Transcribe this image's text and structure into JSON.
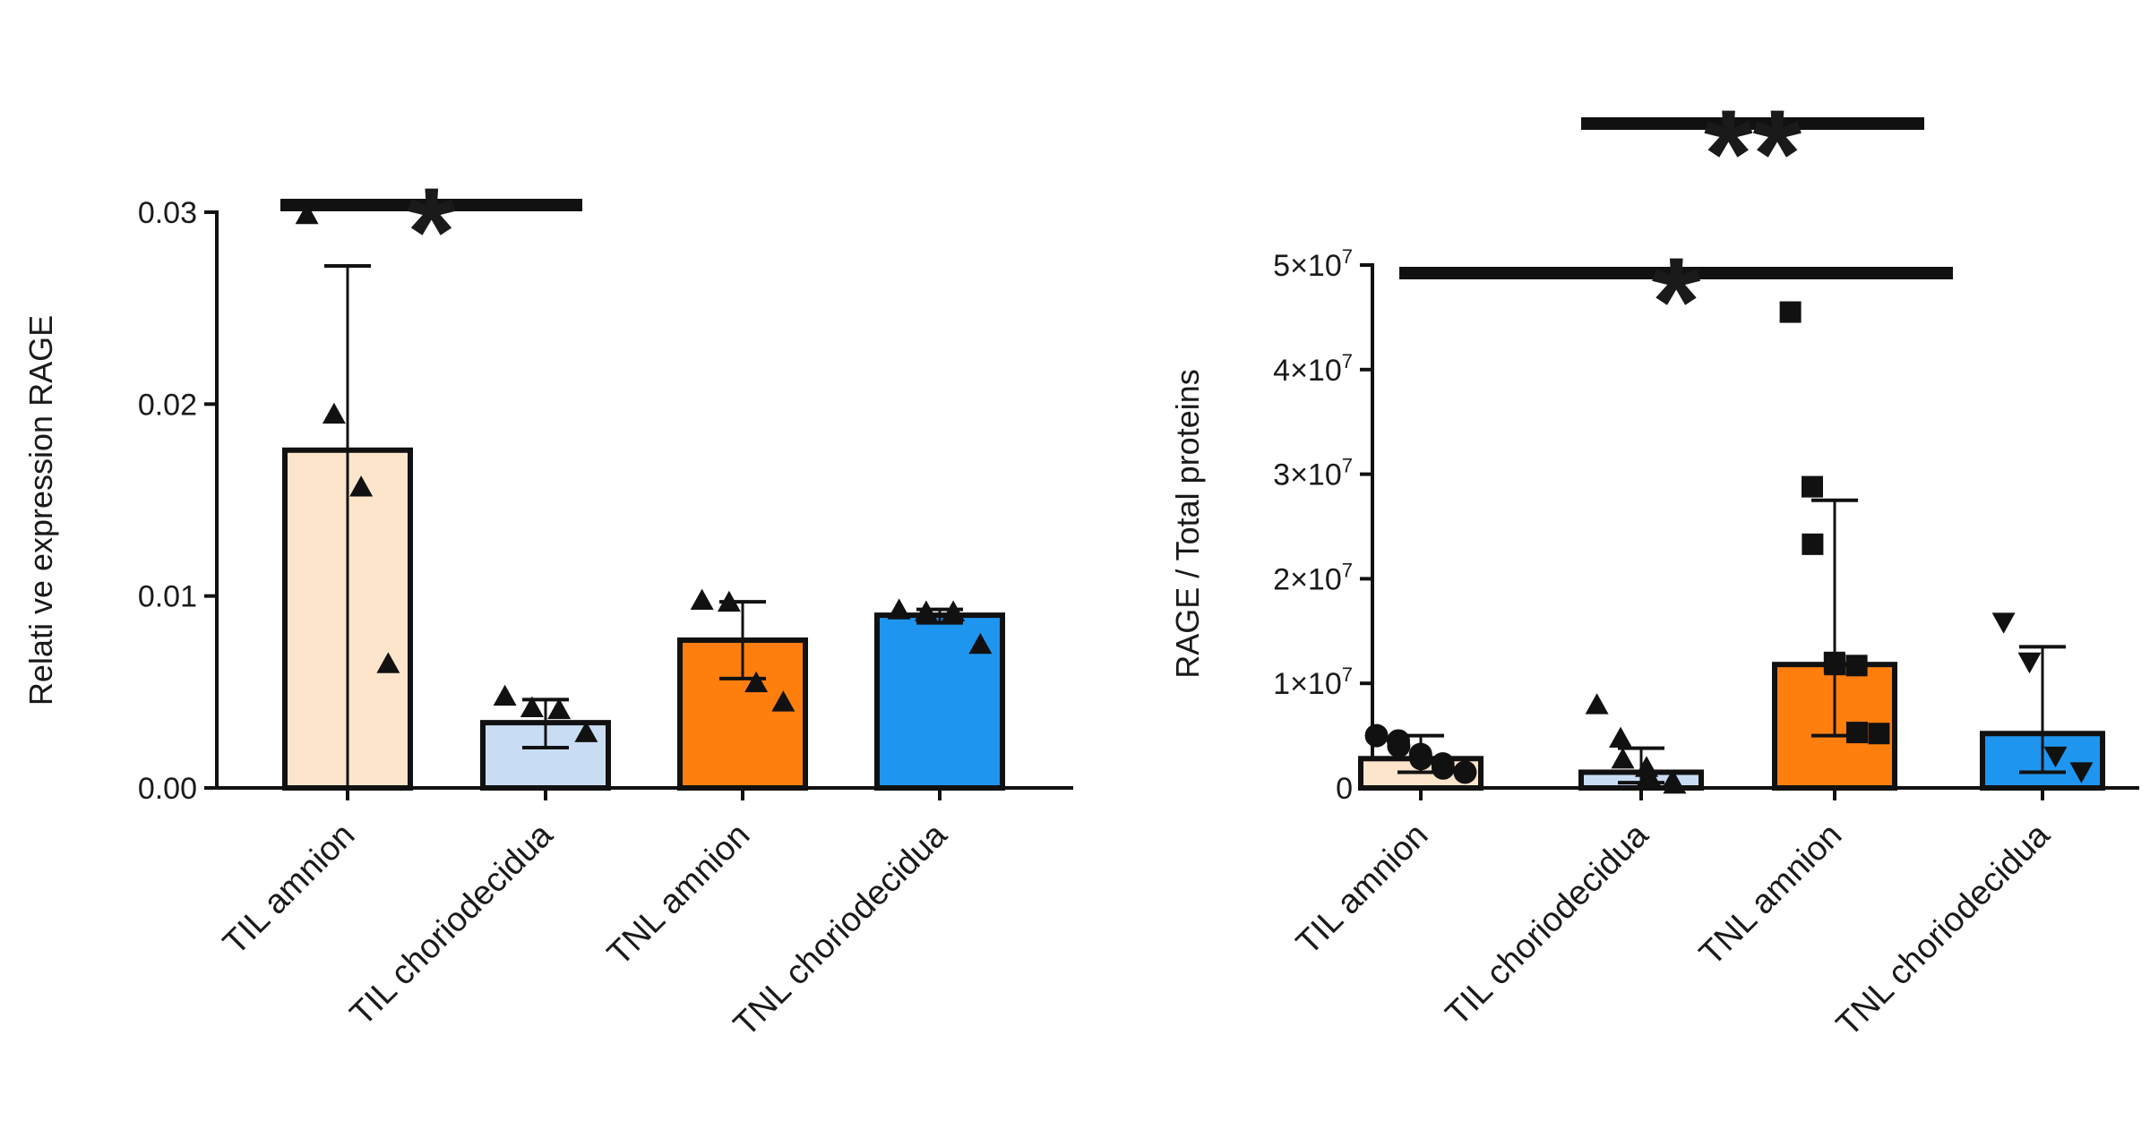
{
  "chart_data": [
    {
      "type": "bar",
      "ylabel": "Relati ve expression RAGE",
      "ylim": [
        0,
        0.03
      ],
      "yticks": [
        "0.00",
        "0.01",
        "0.02",
        "0.03"
      ],
      "ytick_values": [
        0,
        0.01,
        0.02,
        0.03
      ],
      "categories": [
        "TIL amnion",
        "TIL choriodecidua",
        "TNL amnion",
        "TNL choriodecidua"
      ],
      "bar_colors": [
        "#fde5cc",
        "#c8ddf4",
        "#ff7f0e",
        "#1e96f0"
      ],
      "values": [
        0.0176,
        0.0034,
        0.0077,
        0.009
      ],
      "error_upper": [
        0.0272,
        0.0046,
        0.0097,
        0.0093
      ],
      "error_lower": [
        0.0,
        0.0021,
        0.0057,
        0.0086
      ],
      "marker": "triangle-up",
      "points": [
        [
          0.0299,
          0.0195,
          0.0157,
          0.0065
        ],
        [
          0.0048,
          0.0042,
          0.0041,
          0.0029
        ],
        [
          0.0098,
          0.0097,
          0.0055,
          0.0045
        ],
        [
          0.0093,
          0.0092,
          0.0092,
          0.0075
        ]
      ],
      "significance": [
        {
          "from": 0,
          "to": 1,
          "label": "*"
        }
      ]
    },
    {
      "type": "bar",
      "ylabel": "RAGE / Total proteins",
      "ylim": [
        0,
        50000000
      ],
      "yticks": [
        {
          "base": "0",
          "exp": ""
        },
        {
          "base": "1×10",
          "exp": "7"
        },
        {
          "base": "2×10",
          "exp": "7"
        },
        {
          "base": "3×10",
          "exp": "7"
        },
        {
          "base": "4×10",
          "exp": "7"
        },
        {
          "base": "5×10",
          "exp": "7"
        }
      ],
      "ytick_values": [
        0,
        10000000,
        20000000,
        30000000,
        40000000,
        50000000
      ],
      "categories": [
        "TIL amnion",
        "TIL choriodecidua",
        "TNL amnion",
        "TNL choriodecidua"
      ],
      "bar_colors": [
        "#fde5cc",
        "#c8ddf4",
        "#ff7f0e",
        "#1e96f0"
      ],
      "values": [
        2800000,
        1500000,
        11800000,
        5200000
      ],
      "error_upper": [
        5000000,
        3800000,
        27500000,
        13500000
      ],
      "error_lower": [
        1500000,
        500000,
        5000000,
        1500000
      ],
      "markers": [
        "circle",
        "triangle-up",
        "square",
        "triangle-down"
      ],
      "points": [
        [
          5000000,
          4500000,
          4000000,
          3200000,
          2800000,
          2300000,
          1900000,
          1500000
        ],
        [
          8000000,
          4800000,
          2800000,
          2000000,
          1200000,
          700000,
          400000
        ],
        [
          45500000,
          28800000,
          23300000,
          12000000,
          11800000,
          11700000,
          5300000,
          5200000
        ],
        [
          15800000,
          12000000,
          3000000,
          1500000
        ]
      ],
      "significance": [
        {
          "from": 0,
          "to": 3,
          "label": "*"
        },
        {
          "from": 1,
          "to": 3,
          "label": "**"
        }
      ]
    }
  ]
}
